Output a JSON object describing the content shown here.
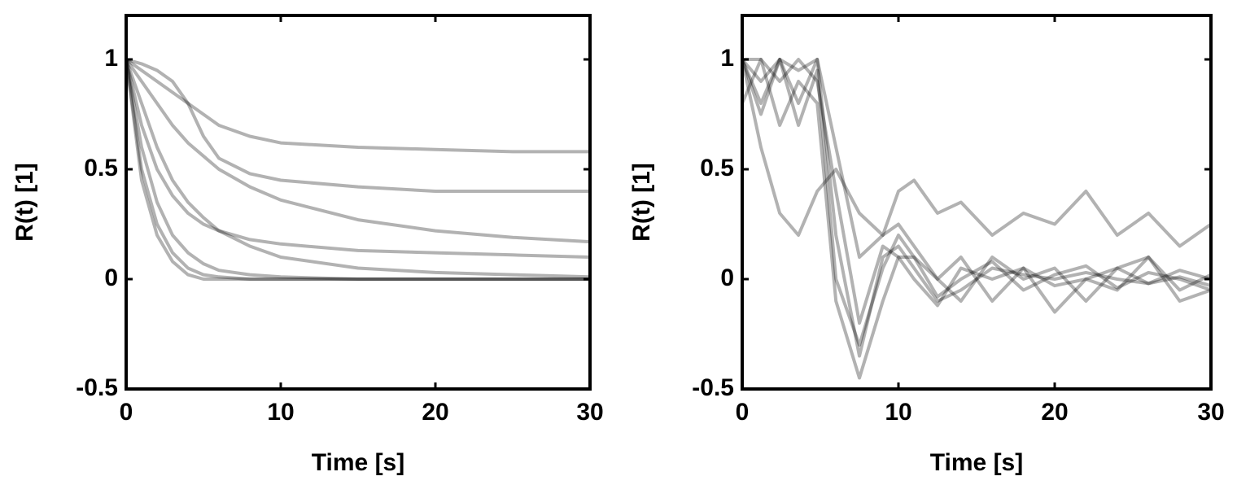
{
  "chart_data": [
    {
      "type": "line",
      "x_label": "Time  [s]",
      "y_label": "R(t)  [1]",
      "xlim": [
        0,
        30
      ],
      "xticks": [
        0,
        10,
        20,
        30
      ],
      "ylim": [
        -0.5,
        1.2
      ],
      "yticks": [
        -0.5,
        0,
        0.5,
        1
      ],
      "line_opacity": 0.3,
      "x": [
        0,
        1,
        2,
        3,
        4,
        5,
        6,
        8,
        10,
        15,
        20,
        25,
        30
      ],
      "series": [
        {
          "color": "#000000",
          "values": [
            1,
            0.45,
            0.2,
            0.08,
            0.02,
            0,
            0,
            0,
            0,
            0,
            0,
            0,
            0
          ]
        },
        {
          "color": "#000000",
          "values": [
            1,
            0.6,
            0.35,
            0.2,
            0.12,
            0.07,
            0.04,
            0.02,
            0.01,
            0,
            0,
            0,
            0
          ]
        },
        {
          "color": "#000000",
          "values": [
            1,
            0.8,
            0.6,
            0.45,
            0.35,
            0.28,
            0.22,
            0.15,
            0.1,
            0.05,
            0.03,
            0.02,
            0.01
          ]
        },
        {
          "color": "#000000",
          "values": [
            1,
            0.9,
            0.8,
            0.7,
            0.62,
            0.56,
            0.5,
            0.42,
            0.36,
            0.27,
            0.22,
            0.19,
            0.17
          ]
        },
        {
          "color": "#000000",
          "values": [
            1,
            0.95,
            0.9,
            0.85,
            0.8,
            0.75,
            0.7,
            0.65,
            0.62,
            0.6,
            0.59,
            0.58,
            0.58
          ]
        },
        {
          "color": "#000000",
          "values": [
            1,
            0.7,
            0.5,
            0.38,
            0.3,
            0.25,
            0.22,
            0.18,
            0.16,
            0.13,
            0.12,
            0.11,
            0.1
          ]
        },
        {
          "color": "#000000",
          "values": [
            1,
            0.98,
            0.95,
            0.9,
            0.8,
            0.65,
            0.55,
            0.48,
            0.45,
            0.42,
            0.4,
            0.4,
            0.4
          ]
        },
        {
          "color": "#000000",
          "values": [
            1,
            0.5,
            0.25,
            0.12,
            0.05,
            0.02,
            0.01,
            0,
            0,
            0,
            0,
            0,
            0
          ]
        }
      ]
    },
    {
      "type": "line",
      "x_label": "Time  [s]",
      "y_label": "R(t)  [1]",
      "xlim": [
        0,
        30
      ],
      "xticks": [
        0,
        10,
        20,
        30
      ],
      "ylim": [
        -0.5,
        1.2
      ],
      "yticks": [
        -0.5,
        0,
        0.5,
        1
      ],
      "line_opacity": 0.3,
      "x": [
        0,
        1.2,
        2.4,
        3.6,
        4.8,
        6,
        7.5,
        9,
        10,
        11,
        12.5,
        14,
        16,
        18,
        20,
        22,
        24,
        26,
        28,
        30
      ],
      "series": [
        {
          "color": "#000000",
          "values": [
            1,
            0.8,
            1,
            0.8,
            1,
            0.2,
            -0.35,
            0.1,
            0.15,
            0.05,
            -0.1,
            -0.05,
            0.05,
            0.02,
            0,
            0.03,
            0,
            -0.02,
            0.01,
            -0.03
          ]
        },
        {
          "color": "#000000",
          "values": [
            1,
            0.75,
            1,
            0.7,
            0.95,
            0,
            -0.3,
            0.05,
            0.2,
            0.1,
            -0.08,
            0,
            0.08,
            -0.05,
            0.02,
            0.06,
            -0.04,
            0.03,
            0,
            -0.05
          ]
        },
        {
          "color": "#000000",
          "values": [
            1,
            1,
            0.9,
            1,
            0.9,
            0.4,
            -0.2,
            0.15,
            0.1,
            0,
            -0.12,
            0.05,
            0,
            0.05,
            -0.03,
            0,
            0.05,
            -0.02,
            0.04,
            0
          ]
        },
        {
          "color": "#000000",
          "values": [
            0.8,
            1,
            0.7,
            0.9,
            0.8,
            -0.1,
            -0.45,
            -0.1,
            0.1,
            0.1,
            0,
            -0.1,
            0.1,
            0,
            0.05,
            -0.1,
            0.05,
            0.1,
            -0.05,
            0.02
          ]
        },
        {
          "color": "#000000",
          "values": [
            1,
            0.6,
            0.3,
            0.2,
            0.4,
            0.5,
            0.3,
            0.2,
            0.4,
            0.45,
            0.3,
            0.35,
            0.2,
            0.3,
            0.25,
            0.4,
            0.2,
            0.3,
            0.15,
            0.25
          ]
        },
        {
          "color": "#000000",
          "values": [
            1,
            0.9,
            1,
            0.95,
            1,
            0.6,
            0.1,
            0.2,
            0.25,
            0.15,
            0,
            0.1,
            -0.1,
            0.05,
            -0.15,
            0,
            -0.05,
            0.1,
            -0.1,
            -0.05
          ]
        }
      ]
    }
  ]
}
